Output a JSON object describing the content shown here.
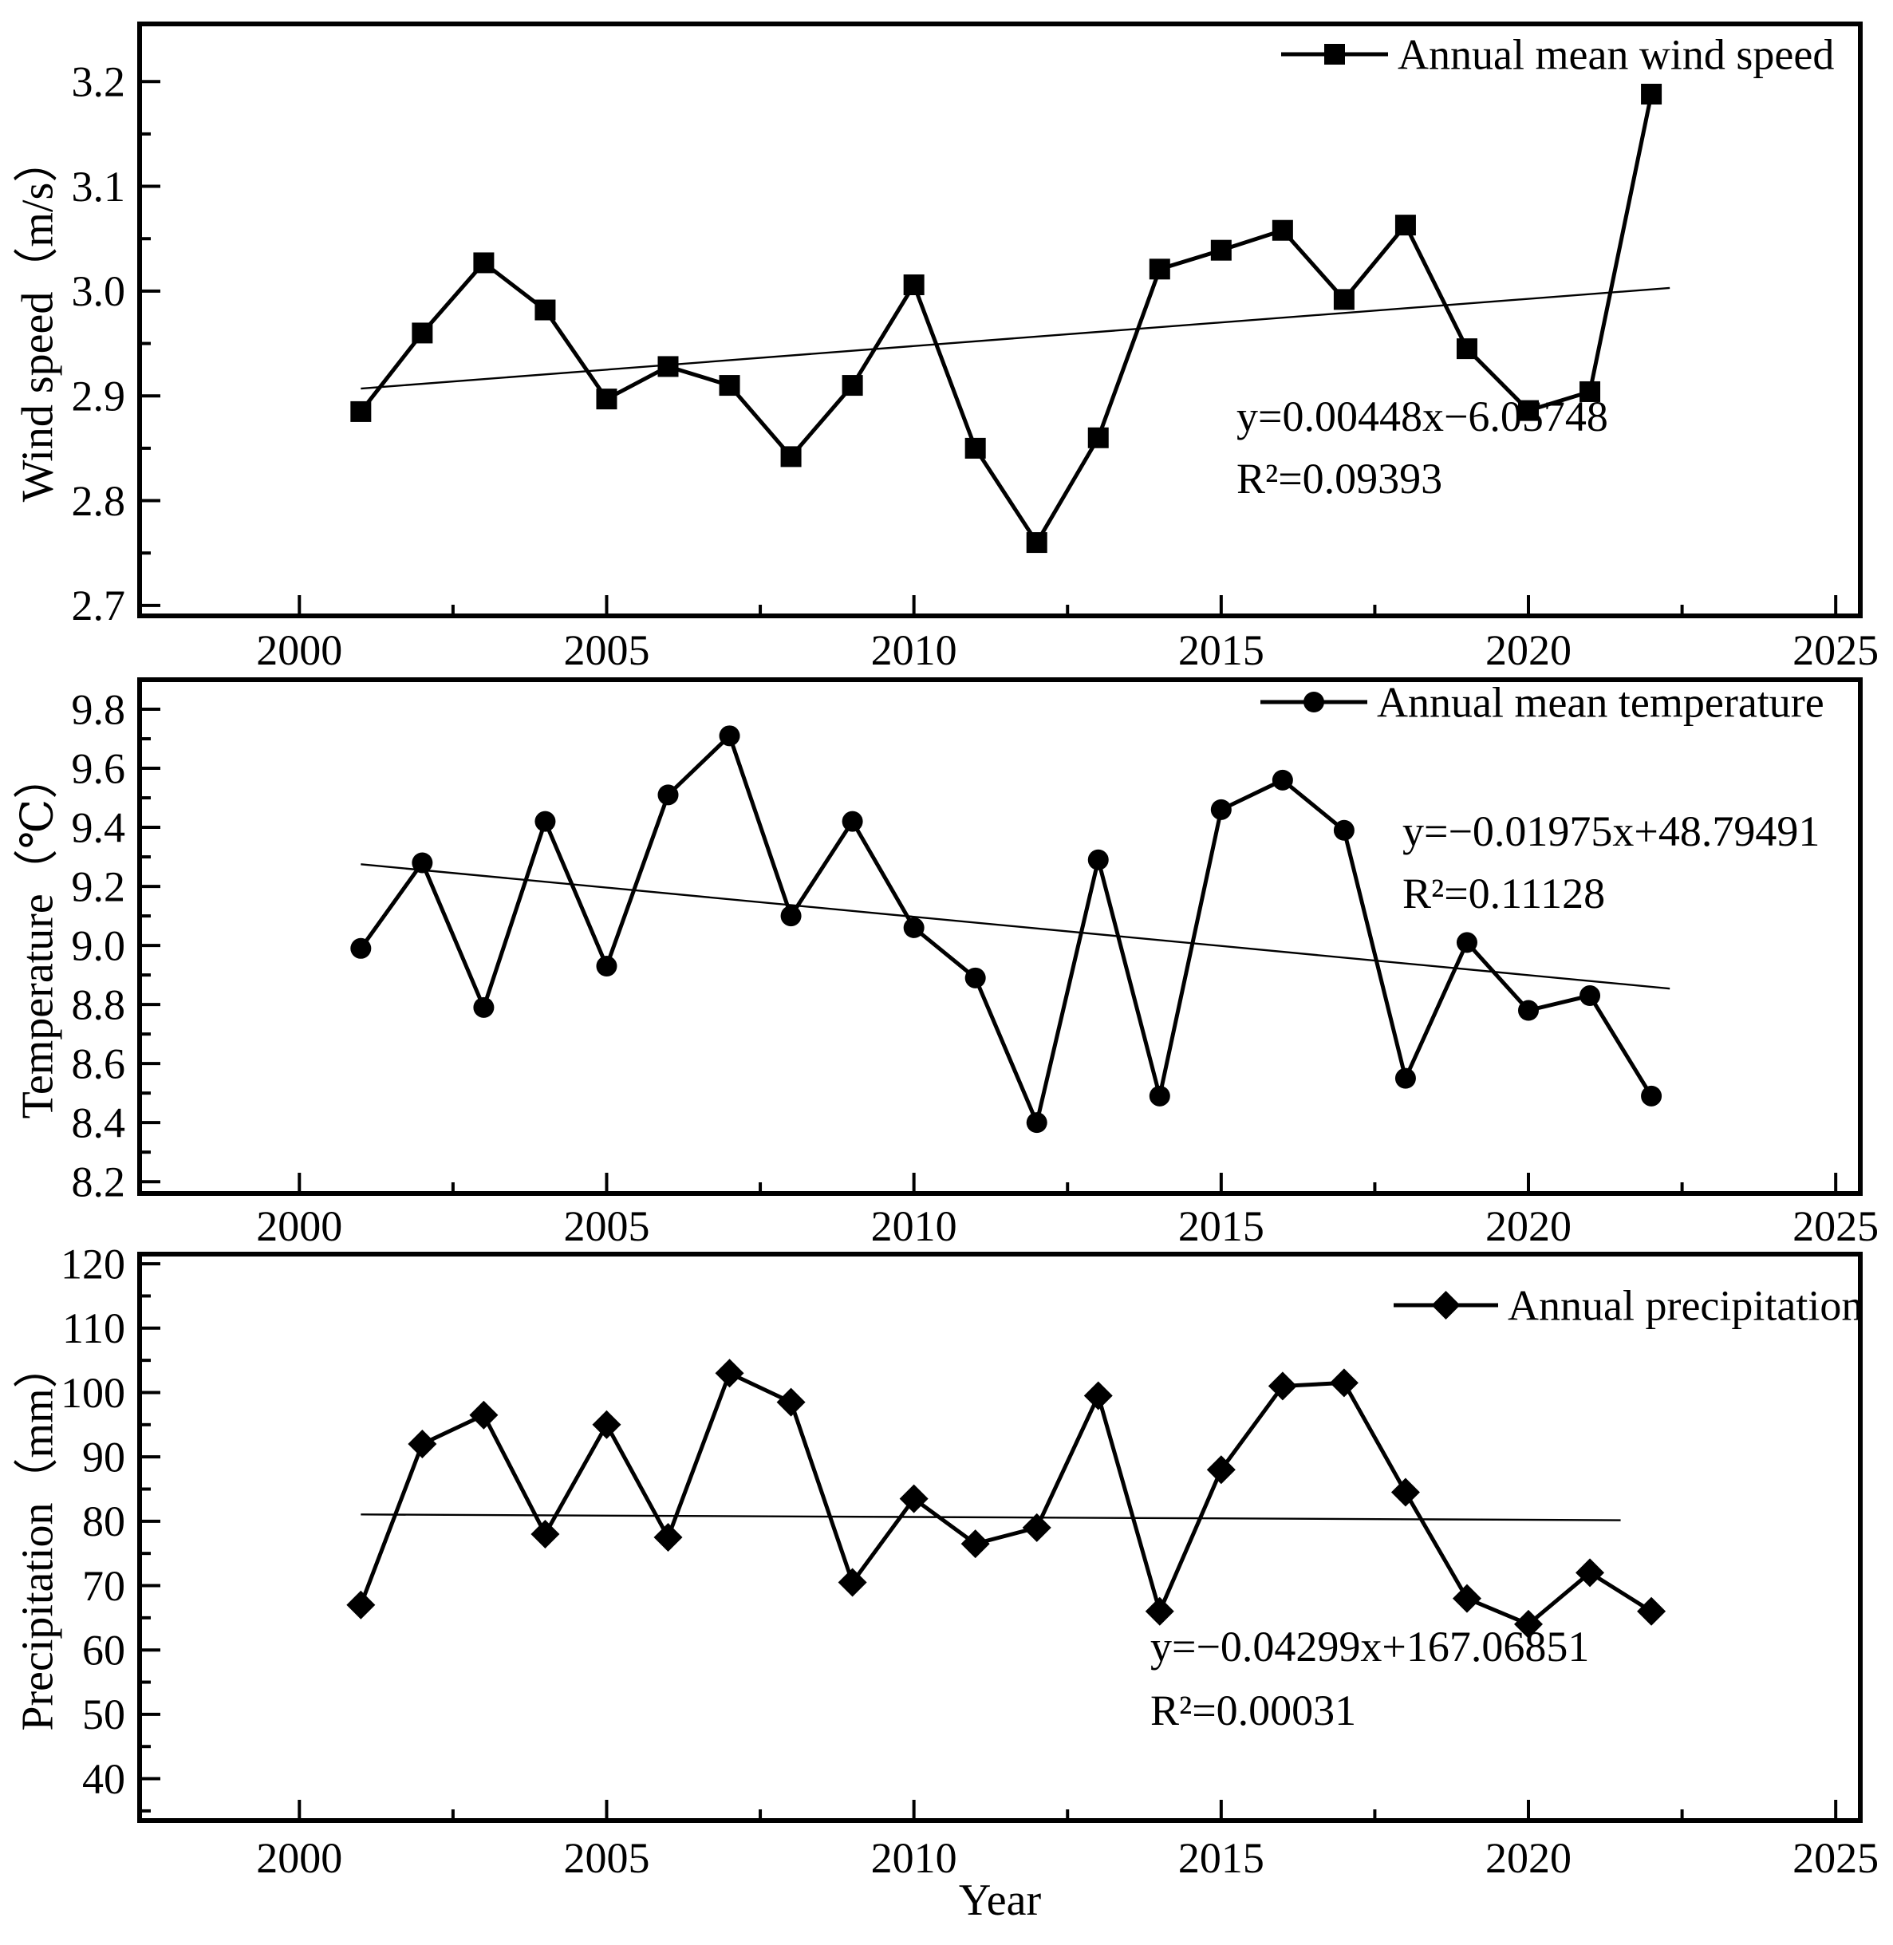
{
  "figure": {
    "x_axis_title": "Year",
    "xlim": [
      1997.4,
      2025.4
    ],
    "x_ticks": [
      {
        "value": 2000,
        "label": "2000"
      },
      {
        "value": 2005,
        "label": "2005"
      },
      {
        "value": 2010,
        "label": "2010"
      },
      {
        "value": 2015,
        "label": "2015"
      },
      {
        "value": 2020,
        "label": "2020"
      },
      {
        "value": 2025,
        "label": "2025"
      }
    ],
    "x_minor_ticks": [
      2002.5,
      2007.5,
      2012.5,
      2017.5,
      2022.5
    ],
    "ink_color": "#000000",
    "background_color": "#ffffff"
  },
  "chart_data": [
    {
      "type": "line",
      "id": "wind-speed",
      "legend": "Annual mean wind speed",
      "marker": "square",
      "ylabel": "Wind speed（m/s）",
      "ylim": [
        2.69,
        3.255
      ],
      "y_ticks": [
        {
          "value": 2.7,
          "label": "2.7"
        },
        {
          "value": 2.8,
          "label": "2.8"
        },
        {
          "value": 2.9,
          "label": "2.9"
        },
        {
          "value": 3.0,
          "label": "3.0"
        },
        {
          "value": 3.1,
          "label": "3.1"
        },
        {
          "value": 3.2,
          "label": "3.2"
        }
      ],
      "y_minor_ticks": [
        2.75,
        2.85,
        2.95,
        3.05,
        3.15
      ],
      "x": [
        2001,
        2002,
        2003,
        2004,
        2005,
        2006,
        2007,
        2008,
        2009,
        2010,
        2011,
        2012,
        2013,
        2014,
        2015,
        2016,
        2017,
        2018,
        2019,
        2020,
        2021,
        2022
      ],
      "values": [
        2.885,
        2.96,
        3.027,
        2.982,
        2.897,
        2.928,
        2.91,
        2.842,
        2.91,
        3.006,
        2.85,
        2.76,
        2.86,
        3.021,
        3.039,
        3.058,
        2.992,
        3.063,
        2.945,
        2.886,
        2.904,
        3.188
      ],
      "trend": {
        "x1": 2001,
        "y1": 2.907,
        "x2": 2022.3,
        "y2": 3.003
      },
      "equation": "y=0.00448x−6.05748",
      "r_squared": "R²=0.09393"
    },
    {
      "type": "line",
      "id": "temperature",
      "legend": "Annual mean temperature",
      "marker": "circle",
      "ylabel": "Temperature（℃）",
      "ylim": [
        8.16,
        9.9
      ],
      "y_ticks": [
        {
          "value": 8.2,
          "label": "8.2"
        },
        {
          "value": 8.4,
          "label": "8.4"
        },
        {
          "value": 8.6,
          "label": "8.6"
        },
        {
          "value": 8.8,
          "label": "8.8"
        },
        {
          "value": 9.0,
          "label": "9.0"
        },
        {
          "value": 9.2,
          "label": "9.2"
        },
        {
          "value": 9.4,
          "label": "9.4"
        },
        {
          "value": 9.6,
          "label": "9.6"
        },
        {
          "value": 9.8,
          "label": "9.8"
        }
      ],
      "y_minor_ticks": [
        8.3,
        8.5,
        8.7,
        8.9,
        9.1,
        9.3,
        9.5,
        9.7
      ],
      "x": [
        2001,
        2002,
        2003,
        2004,
        2005,
        2006,
        2007,
        2008,
        2009,
        2010,
        2011,
        2012,
        2013,
        2014,
        2015,
        2016,
        2017,
        2018,
        2019,
        2020,
        2021,
        2022
      ],
      "values": [
        8.99,
        9.28,
        8.79,
        9.42,
        8.93,
        9.51,
        9.71,
        9.1,
        9.42,
        9.06,
        8.89,
        8.4,
        9.29,
        8.49,
        9.46,
        9.56,
        9.39,
        8.55,
        9.01,
        8.78,
        8.83,
        8.49
      ],
      "trend": {
        "x1": 2001,
        "y1": 9.275,
        "x2": 2022.3,
        "y2": 8.854
      },
      "equation": "y=−0.01975x+48.79491",
      "r_squared": "R²=0.11128"
    },
    {
      "type": "line",
      "id": "precipitation",
      "legend": "Annual precipitation",
      "marker": "diamond",
      "ylabel": "Precipitation（mm）",
      "ylim": [
        33.5,
        121.5
      ],
      "y_ticks": [
        {
          "value": 40,
          "label": "40"
        },
        {
          "value": 50,
          "label": "50"
        },
        {
          "value": 60,
          "label": "60"
        },
        {
          "value": 70,
          "label": "70"
        },
        {
          "value": 80,
          "label": "80"
        },
        {
          "value": 90,
          "label": "90"
        },
        {
          "value": 100,
          "label": "100"
        },
        {
          "value": 110,
          "label": "110"
        },
        {
          "value": 120,
          "label": "120"
        }
      ],
      "y_minor_ticks": [
        35,
        45,
        55,
        65,
        75,
        85,
        95,
        105,
        115
      ],
      "x": [
        2001,
        2002,
        2003,
        2004,
        2005,
        2006,
        2007,
        2008,
        2009,
        2010,
        2011,
        2012,
        2013,
        2014,
        2015,
        2016,
        2017,
        2018,
        2019,
        2020,
        2021,
        2022
      ],
      "values": [
        67,
        92,
        96.5,
        78,
        95,
        77.5,
        103,
        98.5,
        70.5,
        83.5,
        76.5,
        79,
        99.5,
        66,
        88,
        101,
        101.5,
        84.5,
        68,
        64,
        72,
        66
      ],
      "trend": {
        "x1": 2001,
        "y1": 81.05,
        "x2": 2021.5,
        "y2": 80.16
      },
      "equation": "y=−0.04299x+167.06851",
      "r_squared": "R²=0.00031"
    }
  ]
}
